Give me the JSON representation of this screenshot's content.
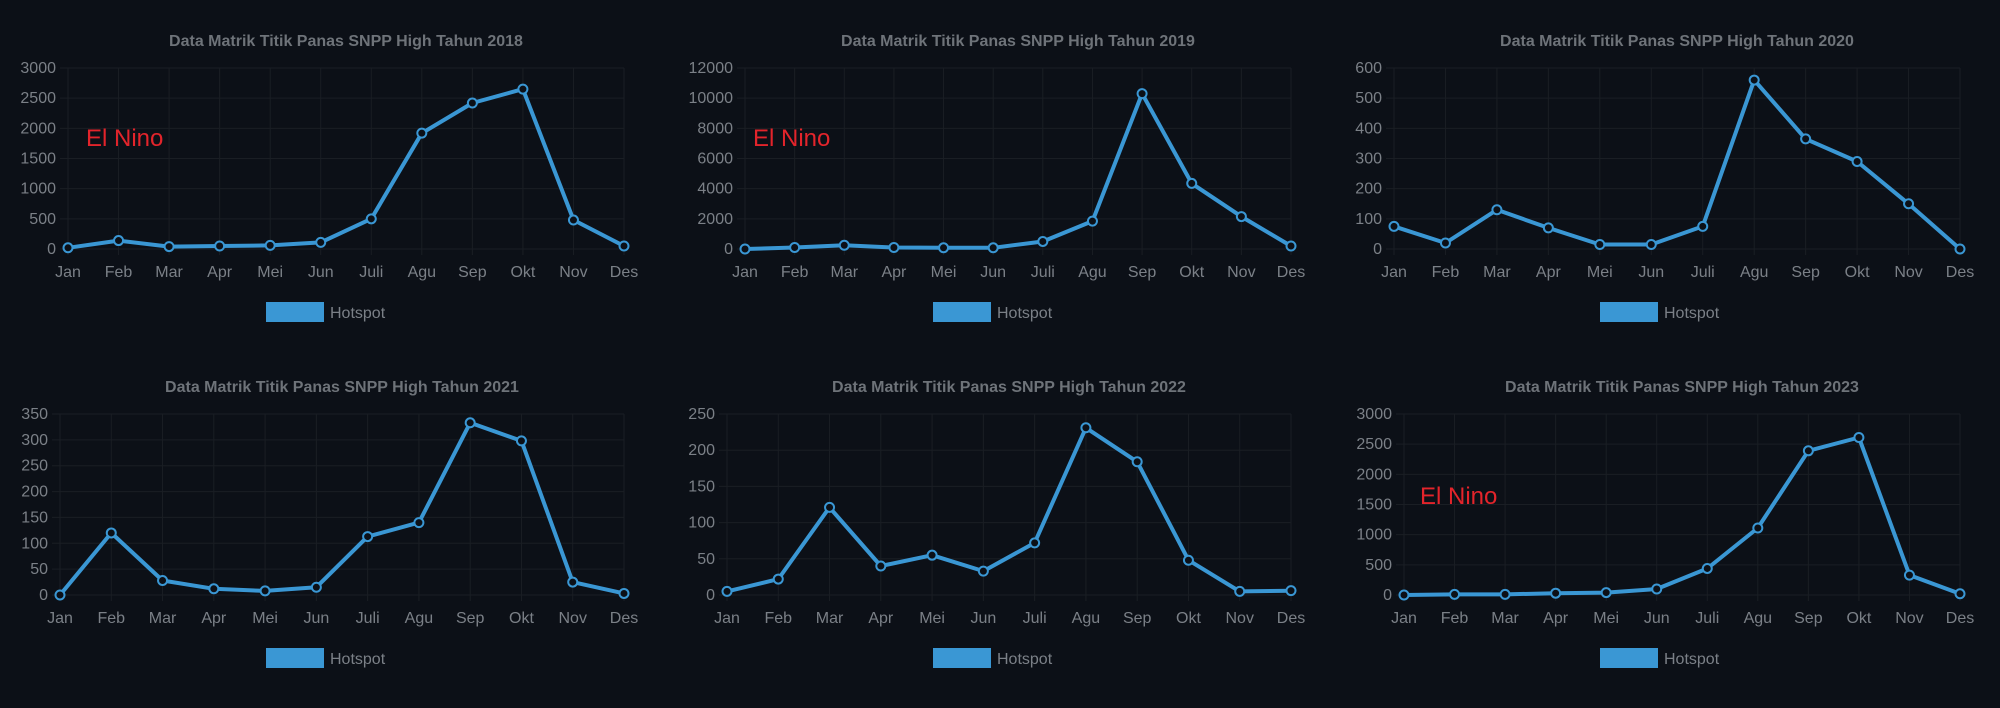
{
  "chart_data": [
    {
      "type": "line",
      "title": "Data Matrik Titik Panas SNPP High Tahun 2018",
      "categories": [
        "Jan",
        "Feb",
        "Mar",
        "Apr",
        "Mei",
        "Jun",
        "Juli",
        "Agu",
        "Sep",
        "Okt",
        "Nov",
        "Des"
      ],
      "series": [
        {
          "name": "Hotspot",
          "values": [
            20,
            140,
            40,
            50,
            60,
            110,
            500,
            1920,
            2420,
            2650,
            480,
            50
          ]
        }
      ],
      "ylim": [
        0,
        3000
      ],
      "yticks": [
        0,
        500,
        1000,
        1500,
        2000,
        2500,
        3000
      ],
      "annotation": "El Nino",
      "legend_position": "bottom",
      "grid": true
    },
    {
      "type": "line",
      "title": "Data Matrik Titik Panas SNPP High Tahun 2019",
      "categories": [
        "Jan",
        "Feb",
        "Mar",
        "Apr",
        "Mei",
        "Jun",
        "Juli",
        "Agu",
        "Sep",
        "Okt",
        "Nov",
        "Des"
      ],
      "series": [
        {
          "name": "Hotspot",
          "values": [
            0,
            100,
            250,
            100,
            80,
            80,
            500,
            1850,
            10300,
            4350,
            2150,
            200
          ]
        }
      ],
      "ylim": [
        0,
        12000
      ],
      "yticks": [
        0,
        2000,
        4000,
        6000,
        8000,
        10000,
        12000
      ],
      "annotation": "El Nino",
      "legend_position": "bottom",
      "grid": true
    },
    {
      "type": "line",
      "title": "Data Matrik Titik Panas SNPP High Tahun 2020",
      "categories": [
        "Jan",
        "Feb",
        "Mar",
        "Apr",
        "Mei",
        "Jun",
        "Juli",
        "Agu",
        "Sep",
        "Okt",
        "Nov",
        "Des"
      ],
      "series": [
        {
          "name": "Hotspot",
          "values": [
            75,
            20,
            130,
            70,
            15,
            15,
            75,
            560,
            365,
            290,
            150,
            0
          ]
        }
      ],
      "ylim": [
        0,
        600
      ],
      "yticks": [
        0,
        100,
        200,
        300,
        400,
        500,
        600
      ],
      "annotation": "",
      "legend_position": "bottom",
      "grid": true
    },
    {
      "type": "line",
      "title": "Data Matrik Titik Panas SNPP High Tahun 2021",
      "categories": [
        "Jan",
        "Feb",
        "Mar",
        "Apr",
        "Mei",
        "Jun",
        "Juli",
        "Agu",
        "Sep",
        "Okt",
        "Nov",
        "Des"
      ],
      "series": [
        {
          "name": "Hotspot",
          "values": [
            0,
            120,
            28,
            12,
            8,
            15,
            113,
            140,
            333,
            298,
            25,
            3
          ]
        }
      ],
      "ylim": [
        0,
        350
      ],
      "yticks": [
        0,
        50,
        100,
        150,
        200,
        250,
        300,
        350
      ],
      "annotation": "",
      "legend_position": "bottom",
      "grid": true
    },
    {
      "type": "line",
      "title": "Data Matrik Titik Panas SNPP High Tahun 2022",
      "categories": [
        "Jan",
        "Feb",
        "Mar",
        "Apr",
        "Mei",
        "Jun",
        "Juli",
        "Agu",
        "Sep",
        "Okt",
        "Nov",
        "Des"
      ],
      "series": [
        {
          "name": "Hotspot",
          "values": [
            5,
            22,
            121,
            40,
            55,
            33,
            72,
            231,
            184,
            48,
            5,
            6
          ]
        }
      ],
      "ylim": [
        0,
        250
      ],
      "yticks": [
        0,
        50,
        100,
        150,
        200,
        250
      ],
      "annotation": "",
      "legend_position": "bottom",
      "grid": true
    },
    {
      "type": "line",
      "title": "Data Matrik Titik Panas SNPP High Tahun 2023",
      "categories": [
        "Jan",
        "Feb",
        "Mar",
        "Apr",
        "Mei",
        "Jun",
        "Juli",
        "Agu",
        "Sep",
        "Okt",
        "Nov",
        "Des"
      ],
      "series": [
        {
          "name": "Hotspot",
          "values": [
            0,
            10,
            10,
            30,
            40,
            100,
            440,
            1110,
            2390,
            2610,
            330,
            20
          ]
        }
      ],
      "ylim": [
        0,
        3000
      ],
      "yticks": [
        0,
        500,
        1000,
        1500,
        2000,
        2500,
        3000
      ],
      "annotation": "El Nino",
      "legend_position": "bottom",
      "grid": true
    }
  ],
  "colors": {
    "line": "#3a97d4",
    "grid": "#1a1e24",
    "axis_text": "#7b8087",
    "title_text": "#6e7379",
    "annotation": "#e3242b",
    "background": "#0c1017"
  }
}
